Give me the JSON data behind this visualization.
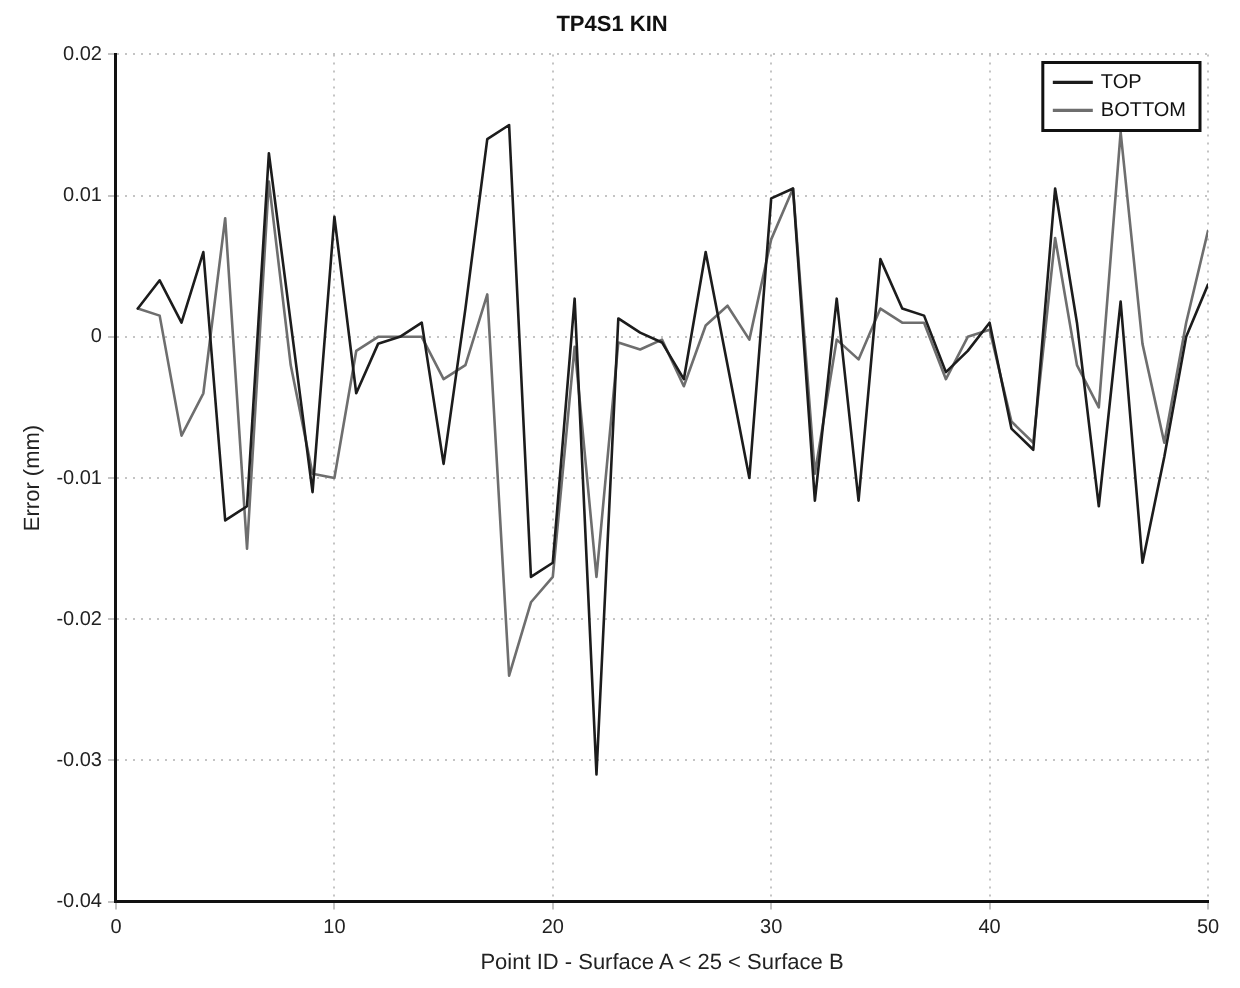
{
  "chart_data": {
    "type": "line",
    "title": "TP4S1 KIN",
    "xlabel": "Point ID - Surface A < 25 < Surface B",
    "ylabel": "Error (mm)",
    "x": [
      1,
      2,
      3,
      4,
      5,
      6,
      7,
      8,
      9,
      10,
      11,
      12,
      13,
      14,
      15,
      16,
      17,
      18,
      19,
      20,
      21,
      22,
      23,
      24,
      25,
      26,
      27,
      28,
      29,
      30,
      31,
      32,
      33,
      34,
      35,
      36,
      37,
      38,
      39,
      40,
      41,
      42,
      43,
      44,
      45,
      46,
      47,
      48,
      49,
      50
    ],
    "series": [
      {
        "name": "TOP",
        "color": "#1c1c1c",
        "values": [
          0.002,
          0.004,
          0.001,
          0.006,
          -0.013,
          -0.012,
          0.013,
          0.001,
          -0.011,
          0.0085,
          -0.004,
          -0.0005,
          0,
          0.001,
          -0.009,
          0.002,
          0.014,
          0.015,
          -0.017,
          -0.016,
          0.0027,
          -0.031,
          0.0013,
          0.0003,
          -0.0004,
          -0.003,
          0.006,
          -0.002,
          -0.01,
          0.0098,
          0.0105,
          -0.0116,
          0.0027,
          -0.0116,
          0.0055,
          0.002,
          0.0015,
          -0.0025,
          -0.001,
          0.001,
          -0.0065,
          -0.008,
          0.0105,
          0.001,
          -0.012,
          0.0025,
          -0.016,
          -0.0085,
          0,
          0.0037
        ]
      },
      {
        "name": "BOTTOM",
        "color": "#6e6e6e",
        "values": [
          0.002,
          0.0015,
          -0.007,
          -0.004,
          0.0084,
          -0.015,
          0.011,
          -0.002,
          -0.0097,
          -0.01,
          -0.001,
          0,
          0,
          0,
          -0.003,
          -0.002,
          0.003,
          -0.024,
          -0.0188,
          -0.017,
          -0.0007,
          -0.017,
          -0.0004,
          -0.0009,
          -0.0002,
          -0.0035,
          0.0008,
          0.0022,
          -0.0002,
          0.0069,
          0.0105,
          -0.0097,
          -0.0002,
          -0.0016,
          0.002,
          0.001,
          0.001,
          -0.003,
          0,
          0.0005,
          -0.006,
          -0.0075,
          0.007,
          -0.002,
          -0.005,
          0.0145,
          -0.0005,
          -0.0075,
          0.001,
          0.0075
        ]
      }
    ],
    "xlim": [
      0,
      50
    ],
    "xticks": [
      0,
      10,
      20,
      30,
      40,
      50
    ],
    "ylim": [
      -0.04,
      0.02
    ],
    "yticks": [
      -0.04,
      -0.03,
      -0.02,
      -0.01,
      0,
      0.01,
      0.02
    ],
    "grid": true,
    "legend": "top right",
    "marker": "none",
    "line_style": "solid"
  }
}
